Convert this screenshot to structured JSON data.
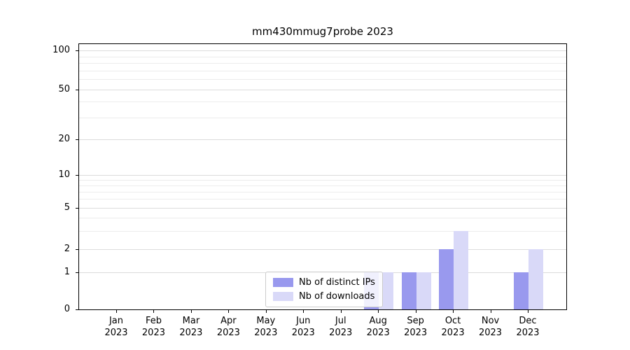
{
  "title": "mm430mmug7probe 2023",
  "chart_data": {
    "type": "bar",
    "title": "mm430mmug7probe 2023",
    "x_months": [
      "Jan",
      "Feb",
      "Mar",
      "Apr",
      "May",
      "Jun",
      "Jul",
      "Aug",
      "Sep",
      "Oct",
      "Nov",
      "Dec"
    ],
    "x_year": "2023",
    "series": [
      {
        "name": "Nb of distinct IPs",
        "color": "#9999ee",
        "values": [
          0,
          0,
          0,
          0,
          0,
          0,
          0,
          1,
          1,
          2,
          0,
          1
        ]
      },
      {
        "name": "Nb of downloads",
        "color": "#d9d9f8",
        "values": [
          0,
          0,
          0,
          0,
          0,
          0,
          0,
          1,
          1,
          3,
          0,
          2
        ]
      }
    ],
    "yticks": [
      0,
      1,
      2,
      5,
      10,
      20,
      50,
      100
    ],
    "ylim": [
      0,
      100
    ],
    "scale": "symlog",
    "grid": true,
    "legend_position": "bottom-center"
  }
}
